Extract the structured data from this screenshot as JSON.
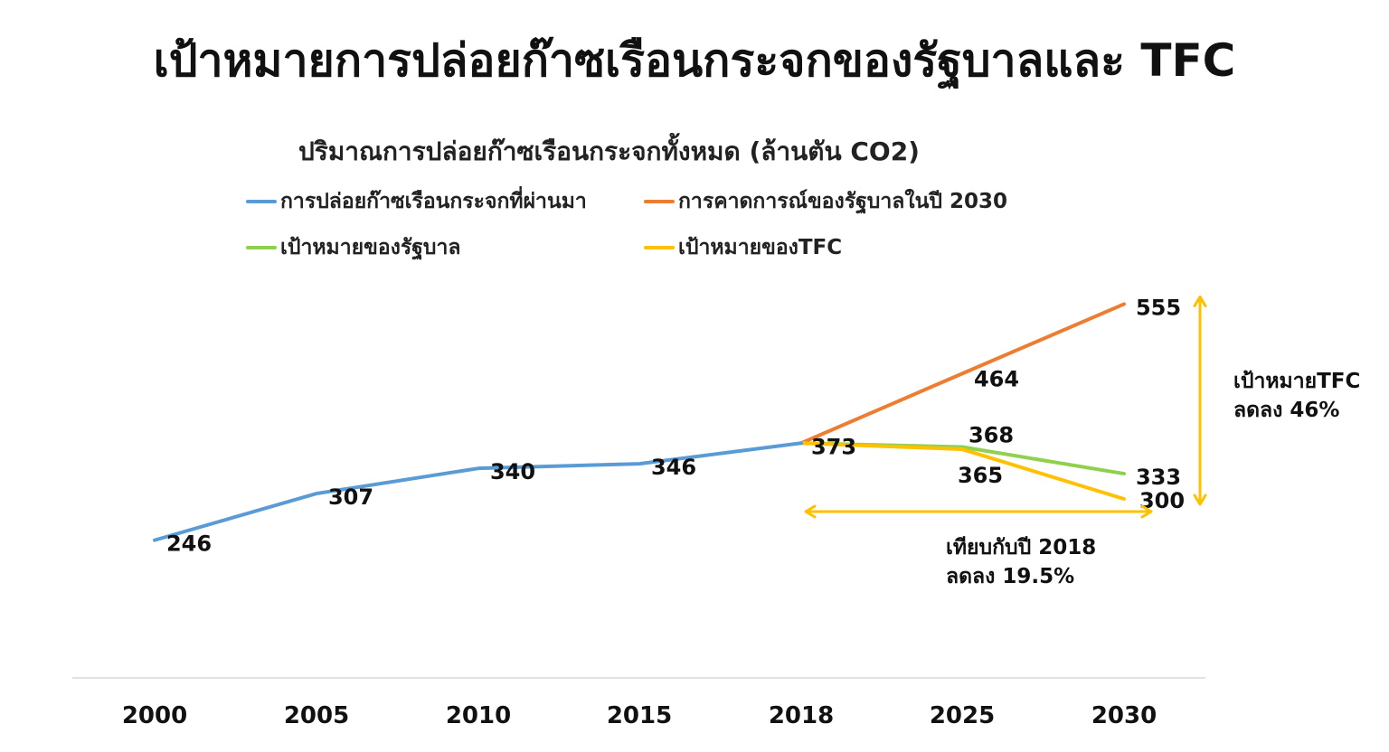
{
  "chart_data": {
    "type": "line",
    "title": "เป้าหมายการปล่อยก๊าซเรือนกระจกของรัฐบาลและ TFC",
    "subtitle": "ปริมาณการปล่อยก๊าซเรือนกระจกทั้งหมด (ล้านตัน CO2)",
    "categories": [
      "2000",
      "2005",
      "2010",
      "2015",
      "2018",
      "2025",
      "2030"
    ],
    "ylim": [
      200,
      600
    ],
    "grid": false,
    "legend_position": "top",
    "series": [
      {
        "name": "การปล่อยก๊าซเรือนกระจกที่ผ่านมา",
        "color": "#5b9bd5",
        "points": [
          {
            "x": "2000",
            "y": 246,
            "label": "246"
          },
          {
            "x": "2005",
            "y": 307,
            "label": "307"
          },
          {
            "x": "2010",
            "y": 340,
            "label": "340"
          },
          {
            "x": "2015",
            "y": 346,
            "label": "346"
          },
          {
            "x": "2018",
            "y": 373,
            "label": "373"
          }
        ]
      },
      {
        "name": "การคาดการณ์ของรัฐบาลในปี 2030",
        "color": "#ed7d31",
        "points": [
          {
            "x": "2018",
            "y": 373
          },
          {
            "x": "2025",
            "y": 464,
            "label": "464"
          },
          {
            "x": "2030",
            "y": 555,
            "label": "555"
          }
        ]
      },
      {
        "name": "เป้าหมายของรัฐบาล",
        "color": "#8fd14f",
        "points": [
          {
            "x": "2018",
            "y": 373
          },
          {
            "x": "2025",
            "y": 368,
            "label": "368"
          },
          {
            "x": "2030",
            "y": 333,
            "label": "333"
          }
        ]
      },
      {
        "name": "เป้าหมายของTFC",
        "color": "#ffc000",
        "points": [
          {
            "x": "2018",
            "y": 373
          },
          {
            "x": "2025",
            "y": 365,
            "label": "365"
          },
          {
            "x": "2030",
            "y": 300,
            "label": "300"
          }
        ]
      }
    ],
    "annotations": {
      "vertical": {
        "line1": "เป้าหมายTFC",
        "line2": "ลดลง 46%"
      },
      "horizontal": {
        "line1": "เทียบกับปี 2018",
        "line2": "ลดลง 19.5%"
      }
    }
  }
}
